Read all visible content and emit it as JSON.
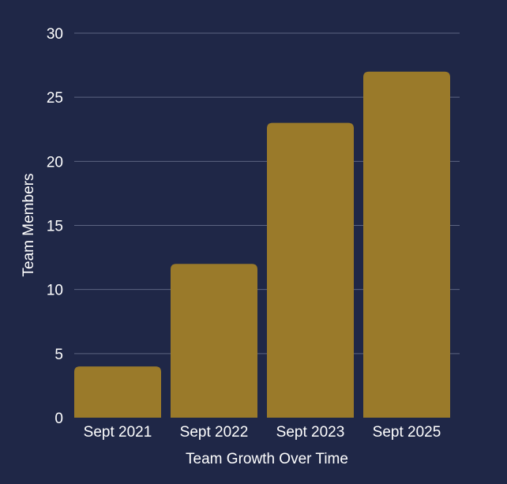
{
  "colors": {
    "background": "#1f2747",
    "bar": "#9a7a2a",
    "grid": "#5c6481",
    "text": "#ffffff"
  },
  "chart_data": {
    "type": "bar",
    "title": "",
    "xlabel": "Team Growth Over Time",
    "ylabel": "Team Members",
    "categories": [
      "Sept 2021",
      "Sept 2022",
      "Sept 2023",
      "Sept 2025"
    ],
    "values": [
      4,
      12,
      23,
      27
    ],
    "ylim": [
      0,
      30
    ],
    "yticks": [
      "0",
      "5",
      "10",
      "15",
      "20",
      "25",
      "30"
    ],
    "grid": true,
    "legend": "none"
  }
}
